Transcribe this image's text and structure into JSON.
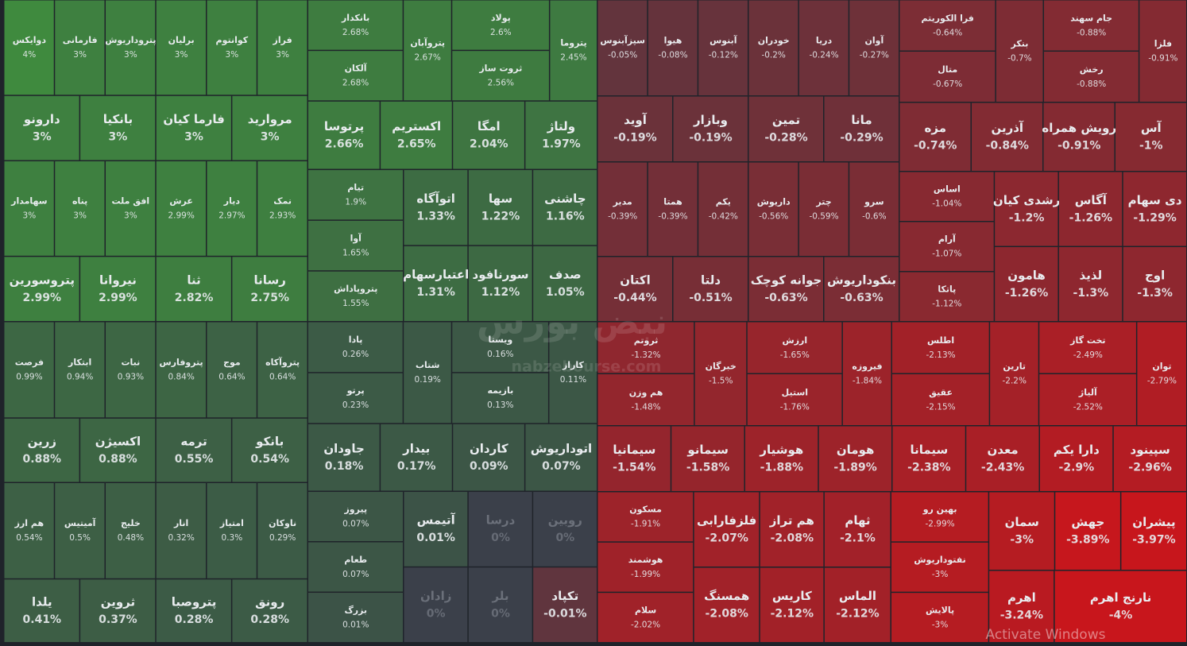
{
  "chart_data": {
    "type": "treemap",
    "colors": {
      "positive": "#3f8a3e",
      "neutral": "#3b404a",
      "negative": "#c8161c",
      "background": "#1f232a"
    },
    "watermark": "نبض بورس",
    "watermark_url": "nabzebourse.com",
    "overlay_text": "Activate Windows",
    "tiles": [
      {
        "name": "دوایکس",
        "value": 4,
        "value_label": "4%"
      },
      {
        "name": "فارمانی",
        "value": 3,
        "value_label": "3%"
      },
      {
        "name": "پتروداریوش",
        "value": 3,
        "value_label": "3%"
      },
      {
        "name": "برلیان",
        "value": 3,
        "value_label": "3%"
      },
      {
        "name": "کوانتوم",
        "value": 3,
        "value_label": "3%"
      },
      {
        "name": "فراز",
        "value": 3,
        "value_label": "3%"
      },
      {
        "name": "دارونو",
        "value": 3,
        "value_label": "3%"
      },
      {
        "name": "بانکیا",
        "value": 3,
        "value_label": "3%"
      },
      {
        "name": "فارما کیان",
        "value": 3,
        "value_label": "3%"
      },
      {
        "name": "مروارید",
        "value": 3,
        "value_label": "3%"
      },
      {
        "name": "سهامدار",
        "value": 3,
        "value_label": "3%"
      },
      {
        "name": "پناه",
        "value": 3,
        "value_label": "3%"
      },
      {
        "name": "افق ملت",
        "value": 3,
        "value_label": "3%"
      },
      {
        "name": "عرش",
        "value": 2.99,
        "value_label": "2.99%"
      },
      {
        "name": "دیار",
        "value": 2.97,
        "value_label": "2.97%"
      },
      {
        "name": "نمک",
        "value": 2.93,
        "value_label": "2.93%"
      },
      {
        "name": "پتروسورین",
        "value": 2.99,
        "value_label": "2.99%"
      },
      {
        "name": "نیروانا",
        "value": 2.99,
        "value_label": "2.99%"
      },
      {
        "name": "ثنا",
        "value": 2.82,
        "value_label": "2.82%"
      },
      {
        "name": "رسانا",
        "value": 2.75,
        "value_label": "2.75%"
      },
      {
        "name": "فرصت",
        "value": 0.99,
        "value_label": "0.99%"
      },
      {
        "name": "ابتکار",
        "value": 0.94,
        "value_label": "0.94%"
      },
      {
        "name": "نبات",
        "value": 0.93,
        "value_label": "0.93%"
      },
      {
        "name": "پتروفارس",
        "value": 0.84,
        "value_label": "0.84%"
      },
      {
        "name": "موج",
        "value": 0.64,
        "value_label": "0.64%"
      },
      {
        "name": "پتروآکاه",
        "value": 0.64,
        "value_label": "0.64%"
      },
      {
        "name": "زرین",
        "value": 0.88,
        "value_label": "0.88%"
      },
      {
        "name": "اکسیژن",
        "value": 0.88,
        "value_label": "0.88%"
      },
      {
        "name": "ترمه",
        "value": 0.55,
        "value_label": "0.55%"
      },
      {
        "name": "بانکو",
        "value": 0.54,
        "value_label": "0.54%"
      },
      {
        "name": "هم ارز",
        "value": 0.54,
        "value_label": "0.54%"
      },
      {
        "name": "آمیتیس",
        "value": 0.5,
        "value_label": "0.5%"
      },
      {
        "name": "خلیج",
        "value": 0.48,
        "value_label": "0.48%"
      },
      {
        "name": "انار",
        "value": 0.32,
        "value_label": "0.32%"
      },
      {
        "name": "امتیاز",
        "value": 0.3,
        "value_label": "0.3%"
      },
      {
        "name": "ناوکان",
        "value": 0.29,
        "value_label": "0.29%"
      },
      {
        "name": "یلدا",
        "value": 0.41,
        "value_label": "0.41%"
      },
      {
        "name": "ثروین",
        "value": 0.37,
        "value_label": "0.37%"
      },
      {
        "name": "پتروصبا",
        "value": 0.28,
        "value_label": "0.28%"
      },
      {
        "name": "رونق",
        "value": 0.28,
        "value_label": "0.28%"
      },
      {
        "name": "بانکدار",
        "value": 2.68,
        "value_label": "2.68%"
      },
      {
        "name": "آلکان",
        "value": 2.68,
        "value_label": "2.68%"
      },
      {
        "name": "پتروآبان",
        "value": 2.67,
        "value_label": "2.67%"
      },
      {
        "name": "پولاد",
        "value": 2.6,
        "value_label": "2.6%"
      },
      {
        "name": "ثروت ساز",
        "value": 2.56,
        "value_label": "2.56%"
      },
      {
        "name": "پتروما",
        "value": 2.45,
        "value_label": "2.45%"
      },
      {
        "name": "پرتوسا",
        "value": 2.66,
        "value_label": "2.66%"
      },
      {
        "name": "اکستریم",
        "value": 2.65,
        "value_label": "2.65%"
      },
      {
        "name": "امگا",
        "value": 2.04,
        "value_label": "2.04%"
      },
      {
        "name": "ولتاژ",
        "value": 1.97,
        "value_label": "1.97%"
      },
      {
        "name": "تیام",
        "value": 1.9,
        "value_label": "1.9%"
      },
      {
        "name": "آوا",
        "value": 1.65,
        "value_label": "1.65%"
      },
      {
        "name": "پتروپاداش",
        "value": 1.55,
        "value_label": "1.55%"
      },
      {
        "name": "اتوآگاه",
        "value": 1.33,
        "value_label": "1.33%"
      },
      {
        "name": "اعتبارسهام",
        "value": 1.31,
        "value_label": "1.31%"
      },
      {
        "name": "سها",
        "value": 1.22,
        "value_label": "1.22%"
      },
      {
        "name": "سورنافود",
        "value": 1.12,
        "value_label": "1.12%"
      },
      {
        "name": "چاشنی",
        "value": 1.16,
        "value_label": "1.16%"
      },
      {
        "name": "صدف",
        "value": 1.05,
        "value_label": "1.05%"
      },
      {
        "name": "پادا",
        "value": 0.26,
        "value_label": "0.26%"
      },
      {
        "name": "پرتو",
        "value": 0.23,
        "value_label": "0.23%"
      },
      {
        "name": "شتاب",
        "value": 0.19,
        "value_label": "0.19%"
      },
      {
        "name": "ویستا",
        "value": 0.16,
        "value_label": "0.16%"
      },
      {
        "name": "بازیمه",
        "value": 0.13,
        "value_label": "0.13%"
      },
      {
        "name": "کاراز",
        "value": 0.11,
        "value_label": "0.11%"
      },
      {
        "name": "جاودان",
        "value": 0.18,
        "value_label": "0.18%"
      },
      {
        "name": "بیدار",
        "value": 0.17,
        "value_label": "0.17%"
      },
      {
        "name": "کاردان",
        "value": 0.09,
        "value_label": "0.09%"
      },
      {
        "name": "اتوداریوش",
        "value": 0.07,
        "value_label": "0.07%"
      },
      {
        "name": "پیروز",
        "value": 0.07,
        "value_label": "0.07%"
      },
      {
        "name": "طعام",
        "value": 0.07,
        "value_label": "0.07%"
      },
      {
        "name": "بزرگ",
        "value": 0.01,
        "value_label": "0.01%"
      },
      {
        "name": "آتیمس",
        "value": 0.01,
        "value_label": "0.01%"
      },
      {
        "name": "زادان",
        "value": 0,
        "value_label": "0%"
      },
      {
        "name": "درسا",
        "value": 0,
        "value_label": "0%"
      },
      {
        "name": "بلر",
        "value": 0,
        "value_label": "0%"
      },
      {
        "name": "روبین",
        "value": 0,
        "value_label": "0%"
      },
      {
        "name": "تکپاد",
        "value": -0.01,
        "value_label": "-0.01%"
      },
      {
        "name": "سپزآبنوس",
        "value": -0.05,
        "value_label": "-0.05%"
      },
      {
        "name": "هیوا",
        "value": -0.08,
        "value_label": "-0.08%"
      },
      {
        "name": "آبنوس",
        "value": -0.12,
        "value_label": "-0.12%"
      },
      {
        "name": "خودران",
        "value": -0.2,
        "value_label": "-0.2%"
      },
      {
        "name": "دریا",
        "value": -0.24,
        "value_label": "-0.24%"
      },
      {
        "name": "آوان",
        "value": -0.27,
        "value_label": "-0.27%"
      },
      {
        "name": "آوید",
        "value": -0.19,
        "value_label": "-0.19%"
      },
      {
        "name": "وبازار",
        "value": -0.19,
        "value_label": "-0.19%"
      },
      {
        "name": "تمین",
        "value": -0.28,
        "value_label": "-0.28%"
      },
      {
        "name": "مانا",
        "value": -0.29,
        "value_label": "-0.29%"
      },
      {
        "name": "مدیر",
        "value": -0.39,
        "value_label": "-0.39%"
      },
      {
        "name": "همتا",
        "value": -0.39,
        "value_label": "-0.39%"
      },
      {
        "name": "یکم",
        "value": -0.42,
        "value_label": "-0.42%"
      },
      {
        "name": "داریوش",
        "value": -0.56,
        "value_label": "-0.56%"
      },
      {
        "name": "چتر",
        "value": -0.59,
        "value_label": "-0.59%"
      },
      {
        "name": "سرو",
        "value": -0.6,
        "value_label": "-0.6%"
      },
      {
        "name": "اکتان",
        "value": -0.44,
        "value_label": "-0.44%"
      },
      {
        "name": "دلتا",
        "value": -0.51,
        "value_label": "-0.51%"
      },
      {
        "name": "جوانه کوچک",
        "value": -0.63,
        "value_label": "-0.63%"
      },
      {
        "name": "بنکوداریوش",
        "value": -0.63,
        "value_label": "-0.63%"
      },
      {
        "name": "فرا الکوریتم",
        "value": -0.64,
        "value_label": "-0.64%"
      },
      {
        "name": "متال",
        "value": -0.67,
        "value_label": "-0.67%"
      },
      {
        "name": "بنکر",
        "value": -0.7,
        "value_label": "-0.7%"
      },
      {
        "name": "جام سهند",
        "value": -0.88,
        "value_label": "-0.88%"
      },
      {
        "name": "رخش",
        "value": -0.88,
        "value_label": "-0.88%"
      },
      {
        "name": "فلزا",
        "value": -0.91,
        "value_label": "-0.91%"
      },
      {
        "name": "مزه",
        "value": -0.74,
        "value_label": "-0.74%"
      },
      {
        "name": "آذرین",
        "value": -0.84,
        "value_label": "-0.84%"
      },
      {
        "name": "رویش همراه",
        "value": -0.91,
        "value_label": "-0.91%"
      },
      {
        "name": "آس",
        "value": -1,
        "value_label": "-1%"
      },
      {
        "name": "اساس",
        "value": -1.04,
        "value_label": "-1.04%"
      },
      {
        "name": "آرام",
        "value": -1.07,
        "value_label": "-1.07%"
      },
      {
        "name": "پاتکا",
        "value": -1.12,
        "value_label": "-1.12%"
      },
      {
        "name": "رشدی کیان",
        "value": -1.2,
        "value_label": "-1.2%"
      },
      {
        "name": "هامون",
        "value": -1.26,
        "value_label": "-1.26%"
      },
      {
        "name": "آگاس",
        "value": -1.26,
        "value_label": "-1.26%"
      },
      {
        "name": "لذیذ",
        "value": -1.3,
        "value_label": "-1.3%"
      },
      {
        "name": "دی سهام",
        "value": -1.29,
        "value_label": "-1.29%"
      },
      {
        "name": "اوج",
        "value": -1.3,
        "value_label": "-1.3%"
      },
      {
        "name": "ثروتم",
        "value": -1.32,
        "value_label": "-1.32%"
      },
      {
        "name": "هم وزن",
        "value": -1.48,
        "value_label": "-1.48%"
      },
      {
        "name": "خبرگان",
        "value": -1.5,
        "value_label": "-1.5%"
      },
      {
        "name": "ارزش",
        "value": -1.65,
        "value_label": "-1.65%"
      },
      {
        "name": "استیل",
        "value": -1.76,
        "value_label": "-1.76%"
      },
      {
        "name": "فیروزه",
        "value": -1.84,
        "value_label": "-1.84%"
      },
      {
        "name": "اطلس",
        "value": -2.13,
        "value_label": "-2.13%"
      },
      {
        "name": "عقیق",
        "value": -2.15,
        "value_label": "-2.15%"
      },
      {
        "name": "تارین",
        "value": -2.2,
        "value_label": "-2.2%"
      },
      {
        "name": "تخت گاز",
        "value": -2.49,
        "value_label": "-2.49%"
      },
      {
        "name": "آلیاژ",
        "value": -2.52,
        "value_label": "-2.52%"
      },
      {
        "name": "توان",
        "value": -2.79,
        "value_label": "-2.79%"
      },
      {
        "name": "سیمانیا",
        "value": -1.54,
        "value_label": "-1.54%"
      },
      {
        "name": "سیمانو",
        "value": -1.58,
        "value_label": "-1.58%"
      },
      {
        "name": "هوشیار",
        "value": -1.88,
        "value_label": "-1.88%"
      },
      {
        "name": "هومان",
        "value": -1.89,
        "value_label": "-1.89%"
      },
      {
        "name": "سیمانا",
        "value": -2.38,
        "value_label": "-2.38%"
      },
      {
        "name": "معدن",
        "value": -2.43,
        "value_label": "-2.43%"
      },
      {
        "name": "دارا یکم",
        "value": -2.9,
        "value_label": "-2.9%"
      },
      {
        "name": "سپینود",
        "value": -2.96,
        "value_label": "-2.96%"
      },
      {
        "name": "مسکون",
        "value": -1.91,
        "value_label": "-1.91%"
      },
      {
        "name": "هوشمند",
        "value": -1.99,
        "value_label": "-1.99%"
      },
      {
        "name": "سلام",
        "value": -2.02,
        "value_label": "-2.02%"
      },
      {
        "name": "فلزفارابی",
        "value": -2.07,
        "value_label": "-2.07%"
      },
      {
        "name": "همسنگ",
        "value": -2.08,
        "value_label": "-2.08%"
      },
      {
        "name": "هم تراز",
        "value": -2.08,
        "value_label": "-2.08%"
      },
      {
        "name": "کاریس",
        "value": -2.12,
        "value_label": "-2.12%"
      },
      {
        "name": "ثهام",
        "value": -2.1,
        "value_label": "-2.1%"
      },
      {
        "name": "الماس",
        "value": -2.12,
        "value_label": "-2.12%"
      },
      {
        "name": "بهین رو",
        "value": -2.99,
        "value_label": "-2.99%"
      },
      {
        "name": "نفتوداریوش",
        "value": -3,
        "value_label": "-3%"
      },
      {
        "name": "پالایش",
        "value": -3,
        "value_label": "-3%"
      },
      {
        "name": "سمان",
        "value": -3,
        "value_label": "-3%"
      },
      {
        "name": "جهش",
        "value": -3.89,
        "value_label": "-3.89%"
      },
      {
        "name": "پیشران",
        "value": -3.97,
        "value_label": "-3.97%"
      },
      {
        "name": "اهرم",
        "value": -3.24,
        "value_label": "-3.24%"
      },
      {
        "name": "نارنج اهرم",
        "value": -4,
        "value_label": "-4%"
      }
    ]
  }
}
